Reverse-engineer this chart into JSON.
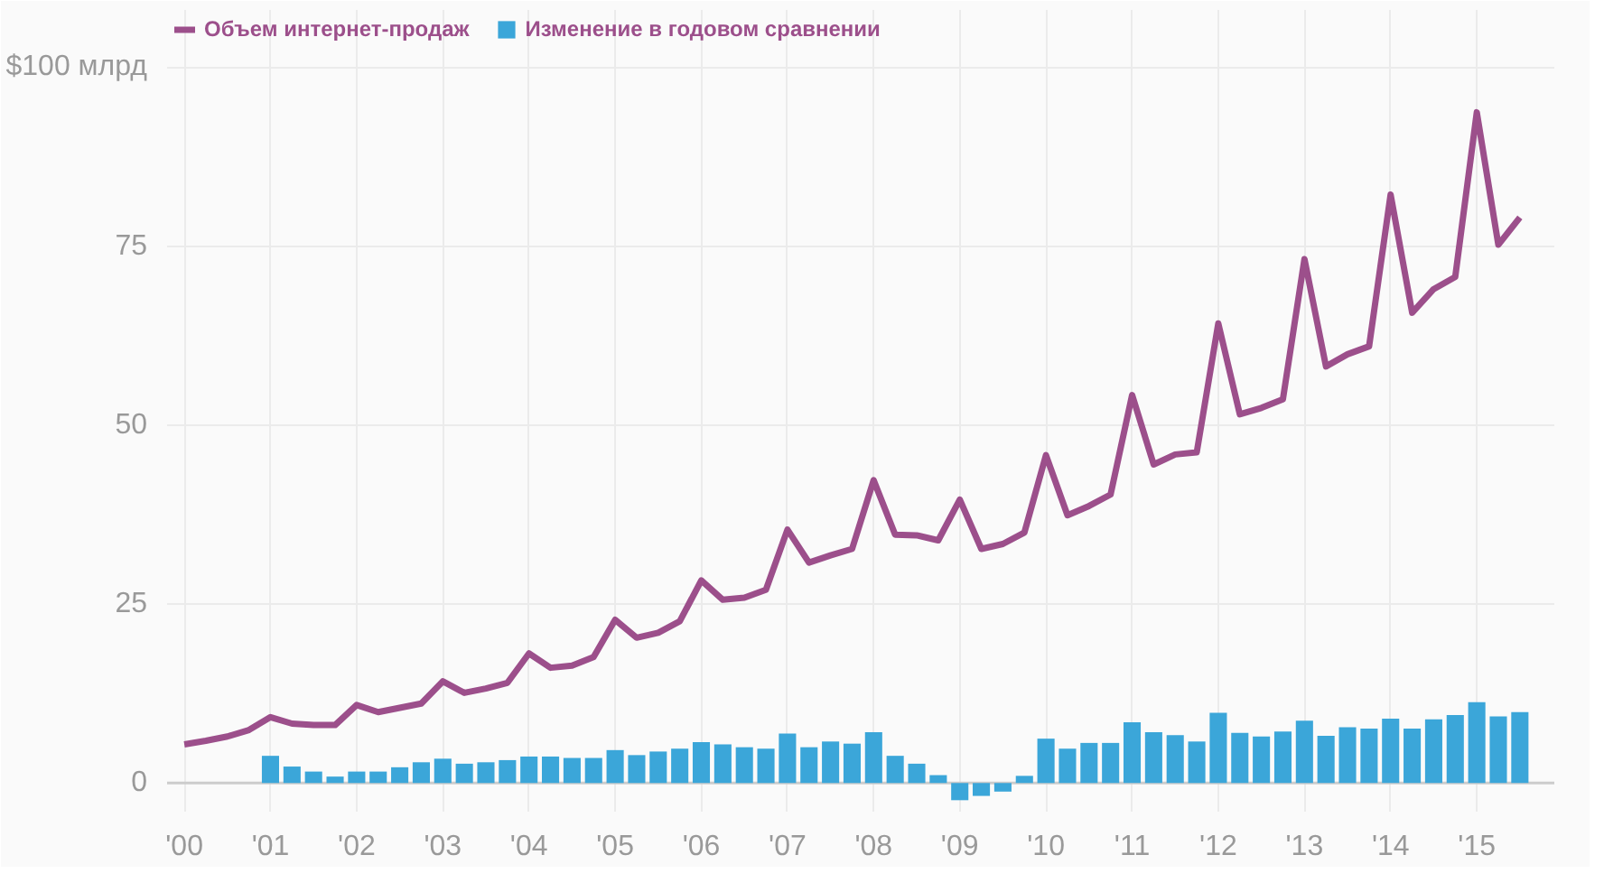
{
  "chart_data": {
    "type": "line",
    "legend": "top left",
    "grid": true,
    "marker": "none",
    "line_style": "solid",
    "xlim": [
      1999.8,
      2015.9
    ],
    "xticks": [
      {
        "value": 2000,
        "label": "'00"
      },
      {
        "value": 2001,
        "label": "'01"
      },
      {
        "value": 2002,
        "label": "'02"
      },
      {
        "value": 2003,
        "label": "'03"
      },
      {
        "value": 2004,
        "label": "'04"
      },
      {
        "value": 2005,
        "label": "'05"
      },
      {
        "value": 2006,
        "label": "'06"
      },
      {
        "value": 2007,
        "label": "'07"
      },
      {
        "value": 2008,
        "label": "'08"
      },
      {
        "value": 2009,
        "label": "'09"
      },
      {
        "value": 2010,
        "label": "'10"
      },
      {
        "value": 2011,
        "label": "'11"
      },
      {
        "value": 2012,
        "label": "'12"
      },
      {
        "value": 2013,
        "label": "'13"
      },
      {
        "value": 2014,
        "label": "'14"
      },
      {
        "value": 2015,
        "label": "'15"
      }
    ],
    "ylim": [
      -4,
      108
    ],
    "yticks": [
      0,
      25,
      50,
      75,
      {
        "value": 100,
        "label": "$100 млрд"
      }
    ],
    "series": [
      {
        "name": "Объем интернет-продаж",
        "color": "#9c4f8b",
        "x": [
          2000,
          2000.25,
          2000.5,
          2000.75,
          2001,
          2001.25,
          2001.5,
          2001.75,
          2002,
          2002.25,
          2002.5,
          2002.75,
          2003,
          2003.25,
          2003.5,
          2003.75,
          2004,
          2004.25,
          2004.5,
          2004.75,
          2005,
          2005.25,
          2005.5,
          2005.75,
          2006,
          2006.25,
          2006.5,
          2006.75,
          2007,
          2007.25,
          2007.5,
          2007.75,
          2008,
          2008.25,
          2008.5,
          2008.75,
          2009,
          2009.25,
          2009.5,
          2009.75,
          2010,
          2010.25,
          2010.5,
          2010.75,
          2011,
          2011.25,
          2011.5,
          2011.75,
          2012,
          2012.25,
          2012.5,
          2012.75,
          2013,
          2013.25,
          2013.5,
          2013.75,
          2014,
          2014.25,
          2014.5,
          2014.75,
          2015,
          2015.25,
          2015.5
        ],
        "values": [
          5.4,
          5.9,
          6.5,
          7.4,
          9.2,
          8.3,
          8.1,
          8.1,
          10.9,
          9.9,
          10.5,
          11.1,
          14.2,
          12.6,
          13.2,
          14.0,
          18.1,
          16.1,
          16.4,
          17.6,
          22.8,
          20.3,
          21.0,
          22.6,
          28.3,
          25.6,
          25.9,
          27.0,
          35.4,
          30.8,
          31.8,
          32.7,
          42.3,
          34.7,
          34.6,
          33.9,
          39.6,
          32.7,
          33.4,
          35.0,
          45.8,
          37.4,
          38.7,
          40.3,
          54.2,
          44.5,
          45.9,
          46.2,
          64.2,
          51.5,
          52.4,
          53.6,
          73.2,
          58.2,
          59.9,
          61.0,
          82.2,
          65.7,
          69.0,
          70.7,
          93.7,
          75.2,
          79.0
        ]
      },
      {
        "name": "Изменение в годовом сравнении",
        "type": "bar",
        "color": "#3ba6d9",
        "x": [
          2001,
          2001.25,
          2001.5,
          2001.75,
          2002,
          2002.25,
          2002.5,
          2002.75,
          2003,
          2003.25,
          2003.5,
          2003.75,
          2004,
          2004.25,
          2004.5,
          2004.75,
          2005,
          2005.25,
          2005.5,
          2005.75,
          2006,
          2006.25,
          2006.5,
          2006.75,
          2007,
          2007.25,
          2007.5,
          2007.75,
          2008,
          2008.25,
          2008.5,
          2008.75,
          2009,
          2009.25,
          2009.5,
          2009.75,
          2010,
          2010.25,
          2010.5,
          2010.75,
          2011,
          2011.25,
          2011.5,
          2011.75,
          2012,
          2012.25,
          2012.5,
          2012.75,
          2013,
          2013.25,
          2013.5,
          2013.75,
          2014,
          2014.25,
          2014.5,
          2014.75,
          2015,
          2015.25,
          2015.5
        ],
        "values": [
          3.8,
          2.3,
          1.6,
          0.9,
          1.6,
          1.6,
          2.2,
          2.9,
          3.4,
          2.7,
          2.9,
          3.2,
          3.7,
          3.7,
          3.5,
          3.5,
          4.6,
          3.9,
          4.4,
          4.8,
          5.7,
          5.4,
          5.0,
          4.8,
          6.9,
          5.0,
          5.8,
          5.5,
          7.1,
          3.8,
          2.7,
          1.1,
          -2.4,
          -1.8,
          -1.2,
          1.0,
          6.2,
          4.8,
          5.6,
          5.6,
          8.5,
          7.1,
          6.7,
          5.8,
          9.8,
          7.0,
          6.5,
          7.2,
          8.7,
          6.6,
          7.8,
          7.6,
          9.0,
          7.6,
          8.9,
          9.5,
          11.3,
          9.3,
          9.9
        ]
      }
    ]
  }
}
